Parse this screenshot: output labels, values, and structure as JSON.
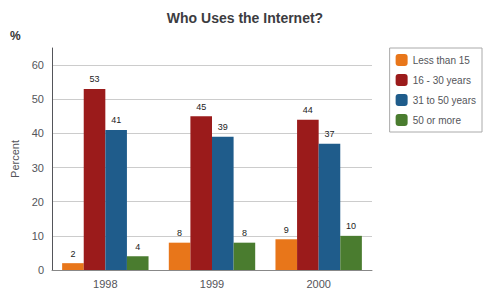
{
  "chart_data": {
    "type": "bar",
    "title": "Who Uses the Internet?",
    "ylabel": "Percent",
    "annotations": [
      "%"
    ],
    "categories": [
      "1998",
      "1999",
      "2000"
    ],
    "series": [
      {
        "name": "Less than 15",
        "color": "#E8761A",
        "values": [
          2,
          8,
          9
        ]
      },
      {
        "name": "16 - 30 years",
        "color": "#9B1B1B",
        "values": [
          53,
          45,
          44
        ]
      },
      {
        "name": "31 to 50 years",
        "color": "#1F5C8B",
        "values": [
          41,
          39,
          37
        ]
      },
      {
        "name": "50 or more",
        "color": "#4A7C2F",
        "values": [
          4,
          8,
          10
        ]
      }
    ],
    "ylim": [
      0,
      65
    ],
    "yticks": [
      0,
      10,
      20,
      30,
      40,
      50,
      60
    ],
    "grid": true,
    "legend": "upper right",
    "data_labels": true
  }
}
